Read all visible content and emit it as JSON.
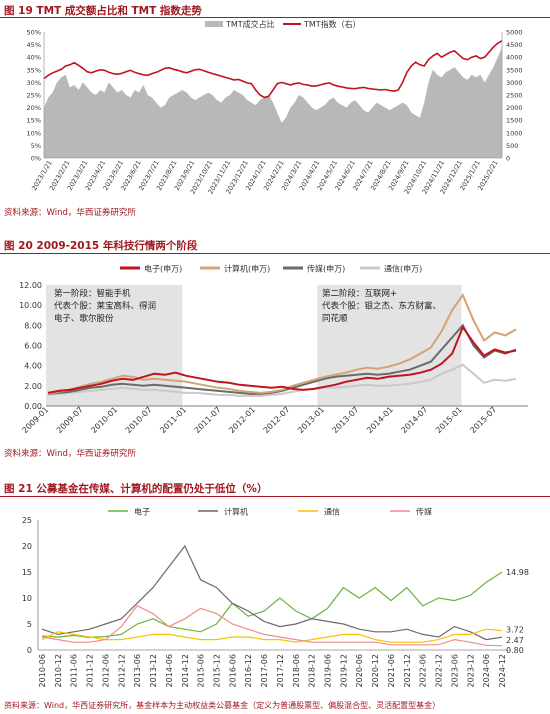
{
  "figures": [
    {
      "title": "图 19 TMT 成交额占比和 TMT 指数走势",
      "source": "资料来源：Wind，华西证券研究所"
    },
    {
      "title": "图 20 2009-2015 年科技行情两个阶段",
      "source": "资料来源：Wind，华西证券研究所"
    },
    {
      "title": "图 21 公募基金在传媒、计算机的配置仍处于低位（%）",
      "source": "资料来源：Wind，华西证券研究所，基金样本为主动权益类公募基金（定义为普通股票型、偏股混合型、灵活配置型基金）"
    }
  ],
  "chart_data": [
    {
      "type": "area",
      "title": "图 19 TMT 成交额占比和 TMT 指数走势",
      "series": [
        {
          "name": "TMT成交占比",
          "type": "area",
          "axis": "left",
          "color": "#b8b8b8"
        },
        {
          "name": "TMT指数（右）",
          "type": "line",
          "axis": "right",
          "color": "#c0141f"
        }
      ],
      "ylim_left": [
        0,
        50
      ],
      "ylim_right": [
        0,
        5000
      ],
      "y_left_ticks": [
        "0%",
        "5%",
        "10%",
        "15%",
        "20%",
        "25%",
        "30%",
        "35%",
        "40%",
        "45%",
        "50%"
      ],
      "y_right_ticks": [
        "0",
        "500",
        "1000",
        "1500",
        "2000",
        "2500",
        "3000",
        "3500",
        "4000",
        "4500",
        "5000"
      ],
      "x_ticks": [
        "2023/1/21",
        "2023/2/21",
        "2023/3/21",
        "2023/4/21",
        "2023/5/21",
        "2023/6/21",
        "2023/7/21",
        "2023/8/21",
        "2023/9/21",
        "2023/10/21",
        "2023/11/21",
        "2023/12/21",
        "2024/1/21",
        "2024/2/21",
        "2024/3/21",
        "2024/4/21",
        "2024/5/21",
        "2024/6/21",
        "2024/7/21",
        "2024/8/21",
        "2024/9/21",
        "2024/10/21",
        "2024/11/21",
        "2024/12/21",
        "2025/1/21",
        "2025/2/21"
      ],
      "share_pct": [
        20,
        24,
        26,
        30,
        32,
        33,
        28,
        29,
        27,
        30,
        28,
        26,
        25,
        27,
        26,
        30,
        28,
        26,
        27,
        25,
        24,
        27,
        26,
        29,
        25,
        24,
        22,
        20,
        21,
        24,
        25,
        26,
        27,
        26,
        24,
        23,
        24,
        25,
        26,
        25,
        23,
        22,
        24,
        25,
        27,
        26,
        25,
        23,
        22,
        21,
        23,
        24,
        25,
        22,
        18,
        14,
        16,
        20,
        22,
        25,
        24,
        22,
        20,
        19,
        20,
        21,
        23,
        24,
        22,
        21,
        20,
        22,
        23,
        21,
        19,
        18,
        20,
        22,
        21,
        20,
        19,
        20,
        21,
        22,
        21,
        18,
        17,
        16,
        22,
        30,
        35,
        33,
        32,
        34,
        35,
        36,
        34,
        32,
        31,
        33,
        32,
        33,
        30,
        33,
        36,
        40,
        44
      ],
      "index": [
        3150,
        3280,
        3380,
        3450,
        3520,
        3650,
        3700,
        3780,
        3680,
        3560,
        3420,
        3380,
        3450,
        3500,
        3480,
        3400,
        3350,
        3320,
        3360,
        3420,
        3480,
        3400,
        3350,
        3300,
        3280,
        3350,
        3400,
        3480,
        3560,
        3580,
        3520,
        3480,
        3420,
        3380,
        3440,
        3500,
        3520,
        3460,
        3400,
        3350,
        3300,
        3250,
        3200,
        3150,
        3100,
        3120,
        3050,
        2980,
        2950,
        2700,
        2500,
        2400,
        2450,
        2700,
        2950,
        3000,
        2950,
        2900,
        2950,
        2980,
        2920,
        2900,
        2850,
        2860,
        2900,
        2950,
        2980,
        2900,
        2850,
        2820,
        2780,
        2760,
        2750,
        2780,
        2800,
        2760,
        2740,
        2720,
        2700,
        2720,
        2680,
        2650,
        2700,
        3000,
        3400,
        3650,
        3800,
        3700,
        3650,
        3900,
        4050,
        4150,
        4000,
        4100,
        4200,
        4250,
        4100,
        3950,
        3900,
        4000,
        4050,
        3950,
        4000,
        4200,
        4400,
        4550,
        4650
      ]
    },
    {
      "type": "line",
      "title": "图 20 2009-2015 年科技行情两个阶段",
      "ylim": [
        0,
        12
      ],
      "y_ticks": [
        "0.00",
        "2.00",
        "4.00",
        "6.00",
        "8.00",
        "10.00",
        "12.00"
      ],
      "x_ticks": [
        "2009-01",
        "2009-07",
        "2010-01",
        "2010-07",
        "2011-01",
        "2011-07",
        "2012-01",
        "2012-07",
        "2013-01",
        "2013-07",
        "2014-01",
        "2014-07",
        "2015-01",
        "2015-07"
      ],
      "series": [
        {
          "name": "电子(申万)",
          "color": "#c0141f",
          "values": [
            1.3,
            1.5,
            1.6,
            1.8,
            2.0,
            2.2,
            2.5,
            2.7,
            2.6,
            2.9,
            3.2,
            3.1,
            3.3,
            3.0,
            2.8,
            2.6,
            2.4,
            2.3,
            2.1,
            2.0,
            1.9,
            1.8,
            1.9,
            1.7,
            1.6,
            1.7,
            1.9,
            2.1,
            2.4,
            2.6,
            2.8,
            2.7,
            2.9,
            3.0,
            3.1,
            3.3,
            3.6,
            4.2,
            5.2,
            7.8,
            6.3,
            5.0,
            5.6,
            5.3,
            5.5
          ]
        },
        {
          "name": "计算机(申万)",
          "color": "#d4a373",
          "values": [
            1.2,
            1.4,
            1.6,
            1.9,
            2.2,
            2.4,
            2.7,
            3.0,
            2.9,
            2.6,
            2.7,
            2.6,
            2.5,
            2.4,
            2.2,
            2.0,
            1.8,
            1.7,
            1.5,
            1.4,
            1.3,
            1.4,
            1.6,
            2.0,
            2.3,
            2.6,
            2.9,
            3.1,
            3.3,
            3.6,
            3.8,
            3.7,
            3.9,
            4.2,
            4.6,
            5.2,
            5.8,
            7.4,
            9.5,
            11.0,
            8.5,
            6.5,
            7.3,
            7.0,
            7.6
          ]
        },
        {
          "name": "传媒(申万)",
          "color": "#6a6a6a",
          "values": [
            1.2,
            1.3,
            1.4,
            1.6,
            1.8,
            1.9,
            2.1,
            2.2,
            2.1,
            2.0,
            2.1,
            2.0,
            1.9,
            1.8,
            1.7,
            1.6,
            1.5,
            1.4,
            1.3,
            1.2,
            1.2,
            1.3,
            1.5,
            1.8,
            2.1,
            2.4,
            2.7,
            2.9,
            3.0,
            3.1,
            3.2,
            3.1,
            3.2,
            3.4,
            3.6,
            4.0,
            4.4,
            5.6,
            6.8,
            8.0,
            6.0,
            4.8,
            5.5,
            5.2,
            5.6
          ]
        },
        {
          "name": "通信(申万)",
          "color": "#c9c9c9",
          "values": [
            1.1,
            1.2,
            1.3,
            1.4,
            1.5,
            1.6,
            1.7,
            1.8,
            1.7,
            1.6,
            1.6,
            1.5,
            1.4,
            1.3,
            1.3,
            1.2,
            1.1,
            1.1,
            1.0,
            1.0,
            1.0,
            1.1,
            1.2,
            1.4,
            1.6,
            1.7,
            1.8,
            1.8,
            1.9,
            2.0,
            2.1,
            2.0,
            2.0,
            2.1,
            2.2,
            2.4,
            2.6,
            3.2,
            3.6,
            4.1,
            3.2,
            2.3,
            2.6,
            2.5,
            2.7
          ]
        }
      ],
      "annotations": [
        {
          "lines": [
            "第一阶段：智能手机",
            "代表个股：莱宝高科、得润",
            "电子、歌尔股份"
          ]
        },
        {
          "lines": [
            "第二阶段：互联网+",
            "代表个股：银之杰、东方财富、",
            "同花顺"
          ]
        }
      ]
    },
    {
      "type": "line",
      "title": "图 21 公募基金在传媒、计算机的配置仍处于低位（%）",
      "ylim": [
        0,
        25
      ],
      "y_ticks": [
        "0",
        "5",
        "10",
        "15",
        "20",
        "25"
      ],
      "x_ticks": [
        "2010-06",
        "2010-12",
        "2011-06",
        "2011-12",
        "2012-06",
        "2012-12",
        "2013-06",
        "2013-12",
        "2014-06",
        "2014-12",
        "2015-06",
        "2015-12",
        "2016-06",
        "2016-12",
        "2017-06",
        "2017-12",
        "2018-06",
        "2018-12",
        "2019-06",
        "2019-12",
        "2020-06",
        "2020-12",
        "2021-06",
        "2021-12",
        "2022-06",
        "2022-12",
        "2023-06",
        "2023-12",
        "2024-06",
        "2024-12"
      ],
      "series": [
        {
          "name": "电子",
          "color": "#6cb33e",
          "values": [
            2.7,
            2.5,
            2.8,
            2.4,
            2.6,
            3.0,
            5.0,
            6.0,
            4.5,
            4.0,
            3.5,
            5.0,
            9.0,
            6.5,
            7.5,
            10.0,
            7.5,
            6.0,
            8.0,
            12.0,
            10.0,
            12.0,
            9.5,
            12.0,
            8.5,
            10.0,
            9.5,
            10.5,
            13.0,
            14.98
          ]
        },
        {
          "name": "计算机",
          "color": "#6a6a6a",
          "values": [
            4.0,
            3.0,
            3.5,
            4.0,
            5.0,
            6.0,
            9.0,
            12.0,
            16.0,
            20.0,
            13.5,
            12.0,
            9.0,
            7.5,
            5.5,
            4.5,
            5.0,
            6.0,
            5.5,
            5.0,
            4.0,
            3.5,
            3.5,
            4.0,
            3.0,
            2.5,
            4.5,
            3.5,
            2.0,
            2.47
          ]
        },
        {
          "name": "通信",
          "color": "#f5c400",
          "values": [
            2.0,
            3.5,
            3.0,
            2.5,
            2.0,
            2.0,
            2.5,
            3.0,
            3.0,
            2.5,
            2.0,
            2.0,
            2.5,
            2.5,
            2.0,
            2.0,
            1.5,
            2.0,
            2.5,
            3.0,
            3.0,
            2.0,
            1.5,
            1.5,
            1.5,
            2.0,
            3.0,
            3.0,
            4.0,
            3.72
          ]
        },
        {
          "name": "传媒",
          "color": "#f28b8b",
          "values": [
            2.5,
            2.0,
            1.5,
            1.5,
            2.0,
            4.5,
            8.5,
            7.0,
            4.5,
            6.0,
            8.0,
            7.0,
            5.0,
            4.0,
            3.0,
            2.5,
            2.0,
            1.5,
            1.5,
            1.5,
            1.5,
            1.5,
            1.0,
            1.0,
            1.0,
            1.0,
            2.0,
            1.5,
            0.9,
            0.8
          ]
        }
      ],
      "end_labels": [
        "14.98",
        "3.72",
        "2.47",
        "0.80"
      ]
    }
  ]
}
